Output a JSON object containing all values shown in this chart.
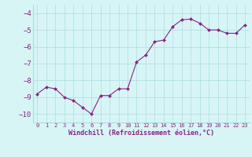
{
  "x": [
    0,
    1,
    2,
    3,
    4,
    5,
    6,
    7,
    8,
    9,
    10,
    11,
    12,
    13,
    14,
    15,
    16,
    17,
    18,
    19,
    20,
    21,
    22,
    23
  ],
  "y": [
    -8.8,
    -8.4,
    -8.5,
    -9.0,
    -9.2,
    -9.6,
    -10.0,
    -8.9,
    -8.9,
    -8.5,
    -8.5,
    -6.9,
    -6.5,
    -5.7,
    -5.6,
    -4.8,
    -4.4,
    -4.35,
    -4.6,
    -5.0,
    -5.0,
    -5.2,
    -5.2,
    -4.7
  ],
  "line_color": "#882288",
  "marker": "D",
  "marker_size": 2,
  "bg_color": "#d8f5f5",
  "grid_color": "#aadddd",
  "xlabel": "Windchill (Refroidissement éolien,°C)",
  "xlabel_fontsize": 6.0,
  "ylim": [
    -10.5,
    -3.5
  ],
  "xlim": [
    -0.5,
    23.5
  ],
  "yticks": [
    -10,
    -9,
    -8,
    -7,
    -6,
    -5,
    -4
  ],
  "xtick_labels": [
    "0",
    "1",
    "2",
    "3",
    "4",
    "5",
    "6",
    "7",
    "8",
    "9",
    "10",
    "11",
    "12",
    "13",
    "14",
    "15",
    "16",
    "17",
    "18",
    "19",
    "20",
    "21",
    "22",
    "23"
  ],
  "tick_fontsize": 5.0,
  "ytick_fontsize": 6.5
}
